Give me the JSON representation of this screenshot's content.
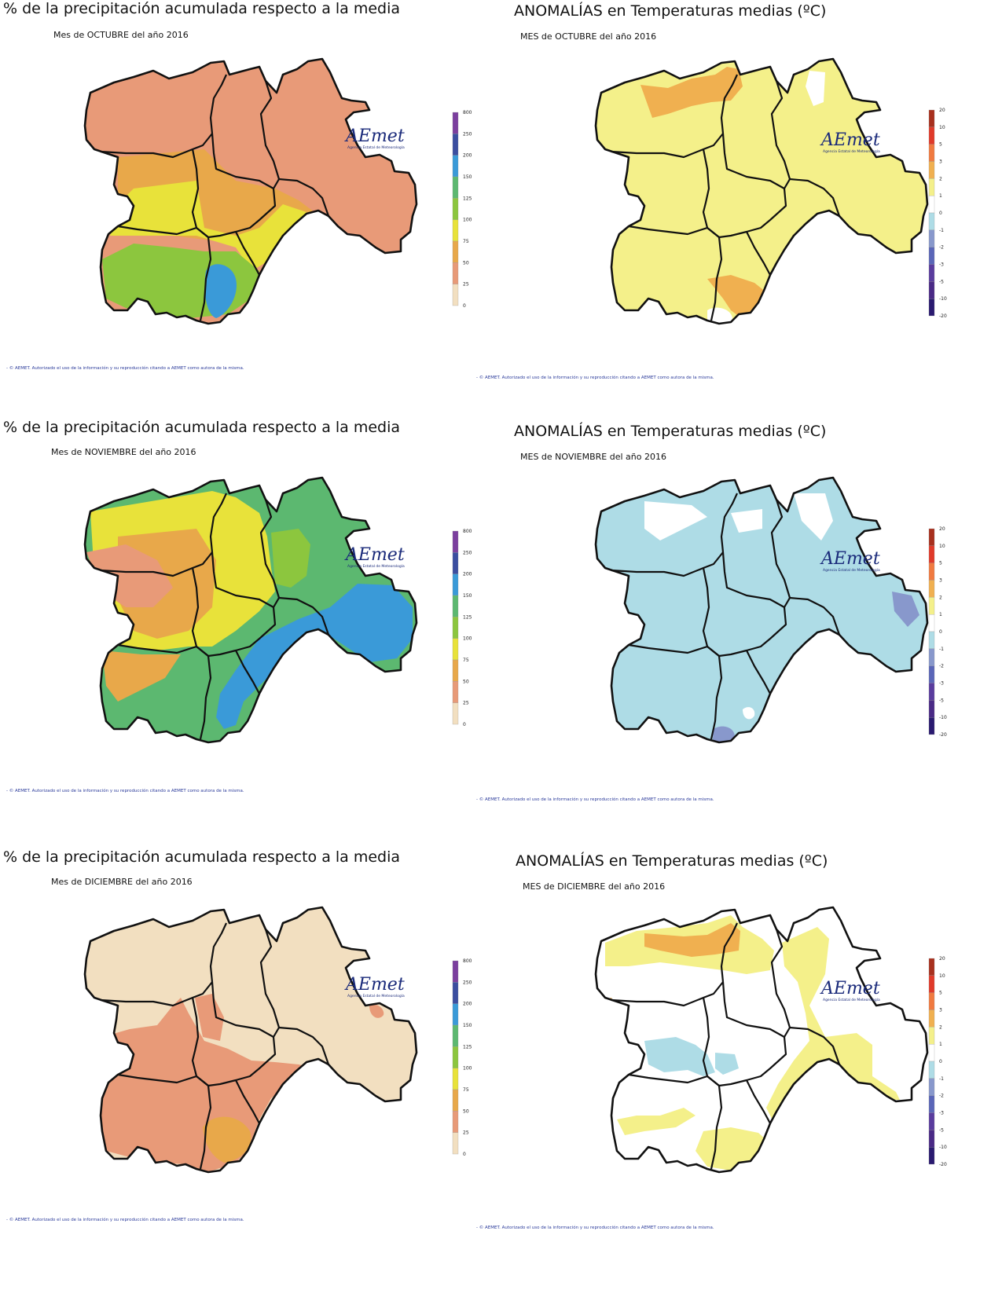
{
  "panels": [
    {
      "title": "% de la precipitación acumulada respecto a la media",
      "subtitle": "Mes de OCTUBRE del año 2016",
      "type": "precip",
      "scheme": "oct_p"
    },
    {
      "title": "ANOMALÍAS en Temperaturas medias (ºC)",
      "subtitle": "MES de OCTUBRE del año 2016",
      "type": "temp",
      "scheme": "oct_t"
    },
    {
      "title": "% de la precipitación acumulada respecto a la media",
      "subtitle": "Mes de NOVIEMBRE del año 2016",
      "type": "precip",
      "scheme": "nov_p"
    },
    {
      "title": "ANOMALÍAS en Temperaturas medias (ºC)",
      "subtitle": "MES de NOVIEMBRE del año 2016",
      "type": "temp",
      "scheme": "nov_t"
    },
    {
      "title": "% de la precipitación acumulada respecto a la media",
      "subtitle": "Mes de DICIEMBRE del año 2016",
      "type": "precip",
      "scheme": "dic_p"
    },
    {
      "title": "ANOMALÍAS en Temperaturas medias (ºC)",
      "subtitle": "MES de DICIEMBRE del año 2016",
      "type": "temp",
      "scheme": "dic_t"
    }
  ],
  "footer": "- © AEMET. Autorizado el uso de la información y su reproducción citando a AEMET como autora de la misma.",
  "logo": {
    "text": "AEmet",
    "subtext": "Agencia Estatal de Meteorología"
  },
  "legends": {
    "precip": {
      "labels": [
        "800",
        "250",
        "200",
        "150",
        "125",
        "100",
        "75",
        "50",
        "25",
        "0"
      ],
      "colors": [
        "#7b3f9e",
        "#3b4ea0",
        "#3a9ad8",
        "#5cb870",
        "#8cc63e",
        "#e8e23a",
        "#e8a84a",
        "#e89a78",
        "#f2dfc0"
      ]
    },
    "temp": {
      "labels": [
        "20",
        "10",
        "5",
        "3",
        "2",
        "1",
        "0",
        "-1",
        "-2",
        "-3",
        "-5",
        "-10",
        "-20"
      ],
      "colors": [
        "#a8301e",
        "#e03a2a",
        "#f07a40",
        "#f0b050",
        "#f4f08a",
        "#ffffff",
        "#aedce6",
        "#8898cc",
        "#5a66b8",
        "#5a3c9e",
        "#4a2a86",
        "#2a1a70"
      ]
    }
  },
  "schemes": {
    "oct_p": {
      "base": "#e89a78",
      "zones": [
        "#e8a84a",
        "#e8e23a",
        "#8cc63e",
        "#3a9ad8"
      ]
    },
    "oct_t": {
      "base": "#f4f08a",
      "zones": [
        "#f0b050",
        "#ffffff"
      ]
    },
    "nov_p": {
      "base": "#5cb870",
      "zones": [
        "#e8e23a",
        "#e8a84a",
        "#e89a78",
        "#3a9ad8",
        "#8cc63e"
      ]
    },
    "nov_t": {
      "base": "#aedce6",
      "zones": [
        "#ffffff",
        "#8898cc"
      ]
    },
    "dic_p": {
      "base": "#f2dfc0",
      "zones": [
        "#e89a78",
        "#e8a84a"
      ]
    },
    "dic_t": {
      "base": "#ffffff",
      "zones": [
        "#f4f08a",
        "#f0b050",
        "#aedce6"
      ]
    }
  }
}
